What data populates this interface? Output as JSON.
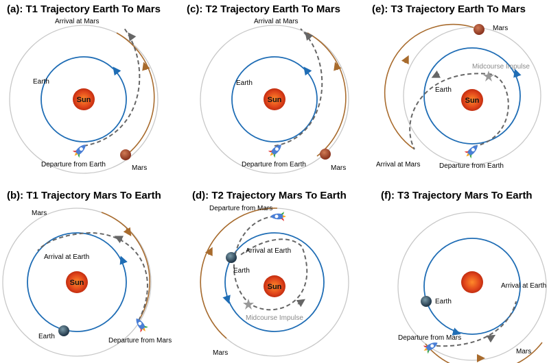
{
  "panels": [
    {
      "id": "a",
      "title": "(a): T1 Trajectory Earth To Mars",
      "sun_label": "Sun",
      "earth_label": "Earth",
      "mars_label": "Mars",
      "arrival_label": "Arrival at Mars",
      "departure_label": "Departure from Earth"
    },
    {
      "id": "c",
      "title": "(c): T2 Trajectory Earth To Mars",
      "sun_label": "Sun",
      "earth_label": "Earth",
      "mars_label": "Mars",
      "arrival_label": "Arrival at Mars",
      "departure_label": "Departure from Earth"
    },
    {
      "id": "e",
      "title": "(e): T3 Trajectory Earth To Mars",
      "sun_label": "Sun",
      "earth_label": "Earth",
      "mars_label": "Mars",
      "arrival_label": "Arrival at Mars",
      "departure_label": "Departure from Earth",
      "impulse_label": "Midcourse Impulse"
    },
    {
      "id": "b",
      "title": "(b): T1 Trajectory Mars To Earth",
      "sun_label": "Sun",
      "earth_label": "Earth",
      "mars_label": "Mars",
      "arrival_label": "Arrival at Earth",
      "departure_label": "Departure from Mars"
    },
    {
      "id": "d",
      "title": "(d): T2 Trajectory Mars To Earth",
      "sun_label": "Sun",
      "earth_label": "Earth",
      "mars_label": "Mars",
      "arrival_label": "Arrival at Earth",
      "departure_label": "Departure from Mars",
      "impulse_label": "Midcourse Impulse"
    },
    {
      "id": "f",
      "title": "(f): T3 Trajectory Mars To Earth",
      "earth_label": "Earth",
      "mars_label": "Mars",
      "arrival_label": "Arrival at Earth",
      "departure_label": "Departure from Mars"
    }
  ],
  "colors": {
    "earth_orbit": "#1f6db5",
    "mars_orbit_gray": "#c8c8c8",
    "mars_orbit_brown": "#a86b2d",
    "trajectory": "#666666",
    "sun": "#e0451b",
    "mars": "#a5452a",
    "earth": "#2d4a5c",
    "impulse_star": "#999999"
  }
}
